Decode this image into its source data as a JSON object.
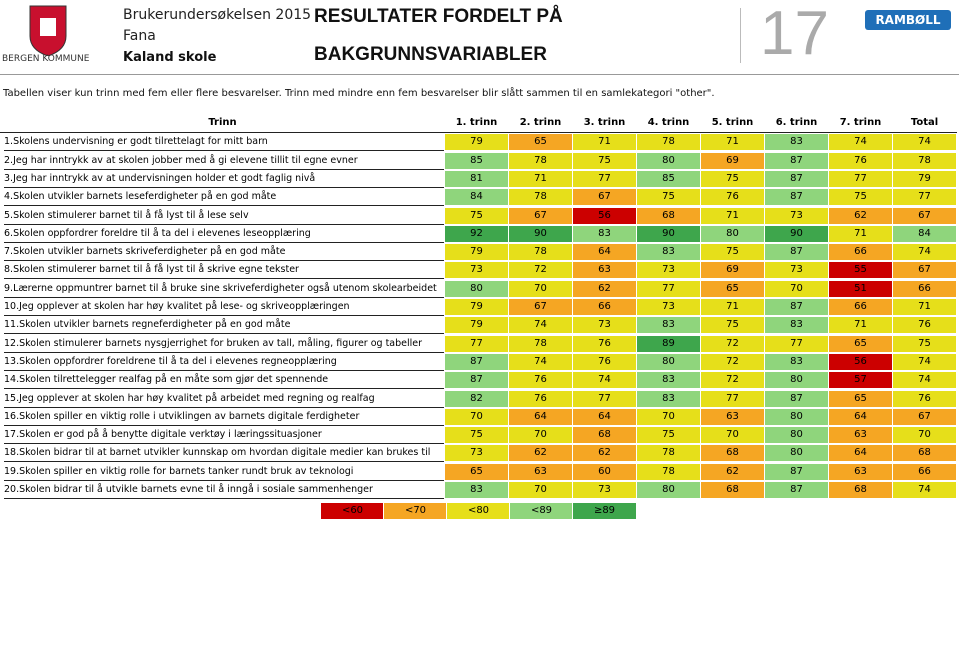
{
  "header": {
    "logo_text": "BERGEN KOMMUNE",
    "survey": "Brukerundersøkelsen 2015",
    "district": "Fana",
    "school": "Kaland skole",
    "title_line1": "RESULTATER FORDELT PÅ",
    "title_line2": "BAKGRUNNSVARIABLER",
    "page_number": "17",
    "brand": "RAMBØLL"
  },
  "note": "Tabellen viser kun trinn med fem eller flere besvarelser. Trinn med mindre enn fem besvarelser blir slått sammen til en samlekategori \"other\".",
  "table": {
    "columns": [
      "Trinn",
      "1. trinn",
      "2. trinn",
      "3. trinn",
      "4. trinn",
      "5. trinn",
      "6. trinn",
      "7. trinn",
      "Total"
    ],
    "rows": [
      [
        "1.Skolens undervisning er godt tilrettelagt for mitt barn",
        79,
        65,
        71,
        78,
        71,
        83,
        74,
        74
      ],
      [
        "2.Jeg har inntrykk av at skolen jobber med å gi elevene tillit til egne evner",
        85,
        78,
        75,
        80,
        69,
        87,
        76,
        78
      ],
      [
        "3.Jeg har inntrykk av at undervisningen holder et godt faglig nivå",
        81,
        71,
        77,
        85,
        75,
        87,
        77,
        79
      ],
      [
        "4.Skolen utvikler barnets leseferdigheter på en god måte",
        84,
        78,
        67,
        75,
        76,
        87,
        75,
        77
      ],
      [
        "5.Skolen stimulerer barnet til å få lyst til å lese selv",
        75,
        67,
        56,
        68,
        71,
        73,
        62,
        67
      ],
      [
        "6.Skolen oppfordrer foreldre til å ta del i elevenes leseopplæring",
        92,
        90,
        83,
        90,
        80,
        90,
        71,
        84
      ],
      [
        "7.Skolen utvikler barnets skriveferdigheter på en god måte",
        79,
        78,
        64,
        83,
        75,
        87,
        66,
        74
      ],
      [
        "8.Skolen stimulerer barnet til å få lyst til å skrive egne tekster",
        73,
        72,
        63,
        73,
        69,
        73,
        55,
        67
      ],
      [
        "9.Lærerne oppmuntrer barnet til å bruke sine skriveferdigheter også utenom skolearbeidet",
        80,
        70,
        62,
        77,
        65,
        70,
        51,
        66
      ],
      [
        "10.Jeg opplever at skolen har høy kvalitet på lese- og skriveopplæringen",
        79,
        67,
        66,
        73,
        71,
        87,
        66,
        71
      ],
      [
        "11.Skolen utvikler barnets regneferdigheter på en god måte",
        79,
        74,
        73,
        83,
        75,
        83,
        71,
        76
      ],
      [
        "12.Skolen stimulerer barnets nysgjerrighet for bruken av tall, måling, figurer og tabeller",
        77,
        78,
        76,
        89,
        72,
        77,
        65,
        75
      ],
      [
        "13.Skolen oppfordrer foreldrene til å ta del i elevenes regneopplæring",
        87,
        74,
        76,
        80,
        72,
        83,
        56,
        74
      ],
      [
        "14.Skolen tilrettelegger realfag på en måte som gjør det spennende",
        87,
        76,
        74,
        83,
        72,
        80,
        57,
        74
      ],
      [
        "15.Jeg opplever at skolen har høy kvalitet på arbeidet med regning og realfag",
        82,
        76,
        77,
        83,
        77,
        87,
        65,
        76
      ],
      [
        "16.Skolen spiller en viktig rolle i utviklingen av barnets digitale ferdigheter",
        70,
        64,
        64,
        70,
        63,
        80,
        64,
        67
      ],
      [
        "17.Skolen er god på å benytte digitale verktøy i læringssituasjoner",
        75,
        70,
        68,
        75,
        70,
        80,
        63,
        70
      ],
      [
        "18.Skolen bidrar til at barnet utvikler kunnskap om hvordan digitale medier kan brukes til læring",
        73,
        62,
        62,
        78,
        68,
        80,
        64,
        68
      ],
      [
        "19.Skolen spiller en viktig rolle for barnets tanker rundt bruk av teknologi",
        65,
        63,
        60,
        78,
        62,
        87,
        63,
        66
      ],
      [
        "20.Skolen bidrar til å utvikle barnets evne til å inngå i sosiale sammenhenger",
        83,
        70,
        73,
        80,
        68,
        87,
        68,
        74
      ]
    ]
  },
  "legend": [
    {
      "label": "<60",
      "color": "#cc0000"
    },
    {
      "label": "<70",
      "color": "#f5a623"
    },
    {
      "label": "<80",
      "color": "#e6df1a"
    },
    {
      "label": "<89",
      "color": "#8fd57c"
    },
    {
      "label": "≥89",
      "color": "#3ea64c"
    }
  ]
}
